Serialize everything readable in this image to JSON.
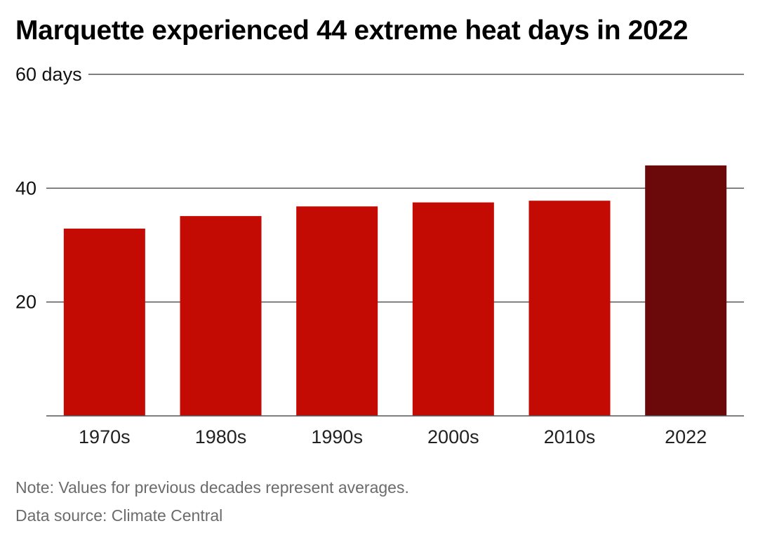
{
  "title": "Marquette experienced 44 extreme heat days in 2022",
  "note": "Note: Values for previous decades represent averages.",
  "source": "Data source: Climate Central",
  "colors": {
    "bar": "#c30a03",
    "highlight": "#6b080a",
    "grid": "#555555"
  },
  "chart_data": {
    "type": "bar",
    "title": "Marquette experienced 44 extreme heat days in 2022",
    "xlabel": "",
    "ylabel": "",
    "categories": [
      "1970s",
      "1980s",
      "1990s",
      "2000s",
      "2010s",
      "2022"
    ],
    "values": [
      32.9,
      35.1,
      36.8,
      37.5,
      37.8,
      44
    ],
    "highlight_category": "2022",
    "ylim": [
      0,
      60
    ],
    "yticks": [
      {
        "value": 20,
        "label": "20"
      },
      {
        "value": 40,
        "label": "40"
      },
      {
        "value": 60,
        "label": "60 days"
      }
    ],
    "grid": true,
    "legend": "none"
  }
}
